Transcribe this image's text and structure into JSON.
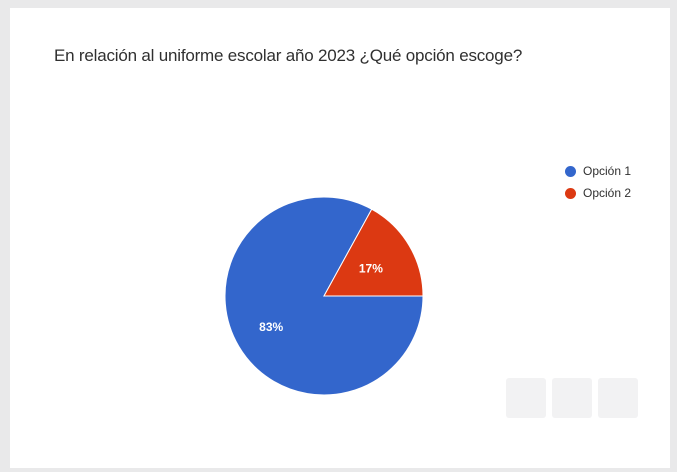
{
  "chart_data": {
    "type": "pie",
    "title": "En relación al uniforme escolar año 2023 ¿Qué opción escoge?",
    "categories": [
      "Opción 1",
      "Opción 2"
    ],
    "values": [
      83,
      17
    ],
    "value_labels": [
      "83%",
      "17%"
    ],
    "colors": [
      "#3366cc",
      "#dc3912"
    ],
    "legend_position": "right"
  }
}
